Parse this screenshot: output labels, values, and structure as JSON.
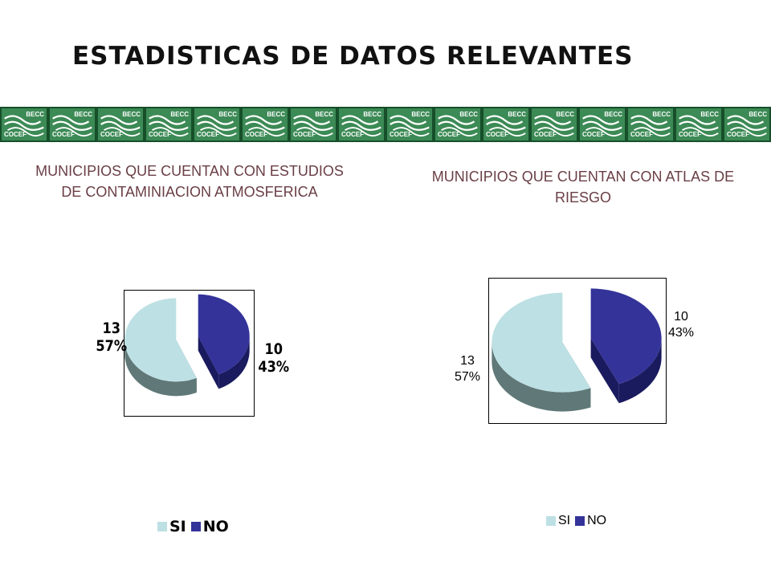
{
  "page_title": "ESTADISTICAS DE DATOS RELEVANTES",
  "banner": {
    "tile_count": 16,
    "logo_top": "BECC",
    "logo_bottom": "COCEF",
    "colors": {
      "green": "#3c8a55",
      "dark_green": "#164f2a"
    }
  },
  "colors": {
    "si": "#bde0e4",
    "si_side": "#607878",
    "no": "#333399",
    "no_side": "#1a1a5e",
    "title_text": "#6a3f45"
  },
  "chart_data": [
    {
      "type": "pie",
      "title": "MUNICIPIOS QUE CUENTAN CON ESTUDIOS DE CONTAMINIACION ATMOSFERICA",
      "categories": [
        "SI",
        "NO"
      ],
      "values": [
        13,
        10
      ],
      "percent_labels": [
        "57%",
        "43%"
      ],
      "legend": [
        "SI",
        "NO"
      ],
      "legend_position": "bottom"
    },
    {
      "type": "pie",
      "title": "MUNICIPIOS QUE CUENTAN CON ATLAS DE RIESGO",
      "categories": [
        "SI",
        "NO"
      ],
      "values": [
        13,
        10
      ],
      "percent_labels": [
        "57%",
        "43%"
      ],
      "legend": [
        "SI",
        "NO"
      ],
      "legend_position": "bottom"
    }
  ]
}
